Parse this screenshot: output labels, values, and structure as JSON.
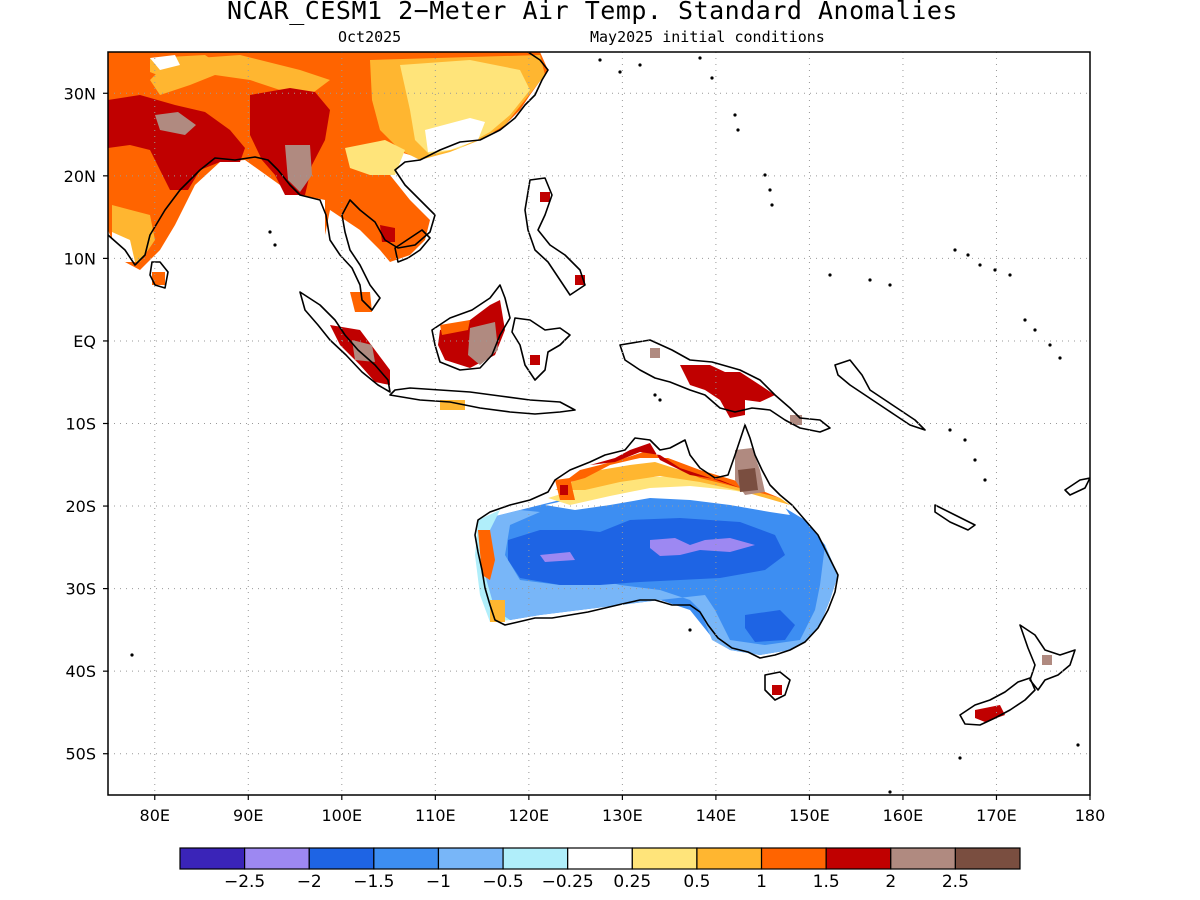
{
  "title": "NCAR_CESM1 2−Meter Air Temp. Standard Anomalies",
  "subtitle_left": "Oct2025",
  "subtitle_right": "May2025 initial conditions",
  "map": {
    "lon_range": [
      75,
      180
    ],
    "lat_range": [
      -55,
      35
    ],
    "x_ticks": [
      {
        "value": 80,
        "label": "80E"
      },
      {
        "value": 90,
        "label": "90E"
      },
      {
        "value": 100,
        "label": "100E"
      },
      {
        "value": 110,
        "label": "110E"
      },
      {
        "value": 120,
        "label": "120E"
      },
      {
        "value": 130,
        "label": "130E"
      },
      {
        "value": 140,
        "label": "140E"
      },
      {
        "value": 150,
        "label": "150E"
      },
      {
        "value": 160,
        "label": "160E"
      },
      {
        "value": 170,
        "label": "170E"
      },
      {
        "value": 180,
        "label": "180"
      }
    ],
    "y_ticks": [
      {
        "value": 30,
        "label": "30N"
      },
      {
        "value": 20,
        "label": "20N"
      },
      {
        "value": 10,
        "label": "10N"
      },
      {
        "value": 0,
        "label": "EQ"
      },
      {
        "value": -10,
        "label": "10S"
      },
      {
        "value": -20,
        "label": "20S"
      },
      {
        "value": -30,
        "label": "30S"
      },
      {
        "value": -40,
        "label": "40S"
      },
      {
        "value": -50,
        "label": "50S"
      }
    ],
    "gridlines": true
  },
  "colorbar": {
    "colors": [
      "#3a24b8",
      "#9d88f2",
      "#1e64e4",
      "#3d8ef2",
      "#78b6f8",
      "#b0eefa",
      "#ffffff",
      "#ffe47a",
      "#ffb630",
      "#ff6400",
      "#c00000",
      "#b08a80",
      "#7a4e40"
    ],
    "labels": [
      "−2.5",
      "−2",
      "−1.5",
      "−1",
      "−0.5",
      "−0.25",
      "0.25",
      "0.5",
      "1",
      "1.5",
      "2",
      "2.5"
    ]
  }
}
